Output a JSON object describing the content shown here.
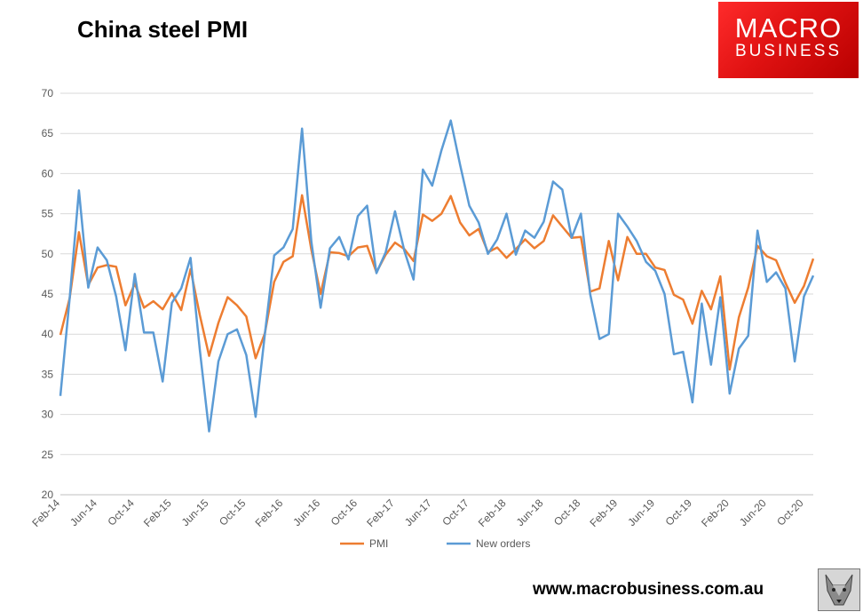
{
  "header": {
    "title": "China steel PMI"
  },
  "logo": {
    "line1": "MACRO",
    "line2": "BUSINESS"
  },
  "footer": {
    "url": "www.macrobusiness.com.au"
  },
  "colors": {
    "pmi": "#ED7D31",
    "new_orders": "#5B9BD5",
    "grid": "#D9D9D9",
    "axis_text": "#595959"
  },
  "chart_data": {
    "type": "line",
    "title": "China steel PMI",
    "ylim": [
      20,
      70
    ],
    "yticks": [
      20,
      25,
      30,
      35,
      40,
      45,
      50,
      55,
      60,
      65,
      70
    ],
    "grid": true,
    "legend": "bottom",
    "x": [
      "Feb-14",
      "Mar-14",
      "Apr-14",
      "May-14",
      "Jun-14",
      "Jul-14",
      "Aug-14",
      "Sep-14",
      "Oct-14",
      "Nov-14",
      "Dec-14",
      "Jan-15",
      "Feb-15",
      "Mar-15",
      "Apr-15",
      "May-15",
      "Jun-15",
      "Jul-15",
      "Aug-15",
      "Sep-15",
      "Oct-15",
      "Nov-15",
      "Dec-15",
      "Jan-16",
      "Feb-16",
      "Mar-16",
      "Apr-16",
      "May-16",
      "Jun-16",
      "Jul-16",
      "Aug-16",
      "Sep-16",
      "Oct-16",
      "Nov-16",
      "Dec-16",
      "Jan-17",
      "Feb-17",
      "Mar-17",
      "Apr-17",
      "May-17",
      "Jun-17",
      "Jul-17",
      "Aug-17",
      "Sep-17",
      "Oct-17",
      "Nov-17",
      "Dec-17",
      "Jan-18",
      "Feb-18",
      "Mar-18",
      "Apr-18",
      "May-18",
      "Jun-18",
      "Jul-18",
      "Aug-18",
      "Sep-18",
      "Oct-18",
      "Nov-18",
      "Dec-18",
      "Jan-19",
      "Feb-19",
      "Mar-19",
      "Apr-19",
      "May-19",
      "Jun-19",
      "Jul-19",
      "Aug-19",
      "Sep-19",
      "Oct-19",
      "Nov-19",
      "Dec-19",
      "Jan-20",
      "Feb-20",
      "Mar-20",
      "Apr-20",
      "May-20",
      "Jun-20",
      "Jul-20",
      "Aug-20",
      "Sep-20",
      "Oct-20",
      "Nov-20"
    ],
    "tick_labels": [
      "Feb-14",
      "Jun-14",
      "Oct-14",
      "Feb-15",
      "Jun-15",
      "Oct-15",
      "Feb-16",
      "Jun-16",
      "Oct-16",
      "Feb-17",
      "Jun-17",
      "Oct-17",
      "Feb-18",
      "Jun-18",
      "Oct-18",
      "Feb-19",
      "Jun-19",
      "Oct-19",
      "Feb-20",
      "Jun-20",
      "Oct-20"
    ],
    "series": [
      {
        "name": "PMI",
        "values": [
          39.9,
          44.5,
          52.7,
          46.1,
          48.3,
          48.6,
          48.4,
          43.6,
          46.3,
          43.3,
          44.1,
          43.1,
          45.1,
          43.0,
          48.1,
          42.4,
          37.3,
          41.4,
          44.6,
          43.6,
          42.2,
          37.0,
          40.1,
          46.5,
          49.0,
          49.7,
          57.3,
          50.5,
          45.0,
          50.2,
          50.1,
          49.7,
          50.8,
          51.0,
          47.7,
          49.9,
          51.4,
          50.6,
          49.1,
          54.9,
          54.1,
          55.0,
          57.2,
          53.9,
          52.3,
          53.1,
          50.2,
          50.8,
          49.5,
          50.6,
          51.8,
          50.7,
          51.6,
          54.8,
          53.4,
          52.0,
          52.1,
          45.3,
          45.7,
          51.6,
          46.7,
          52.1,
          50.0,
          50.0,
          48.3,
          48.0,
          44.9,
          44.3,
          41.3,
          45.4,
          43.1,
          47.2,
          35.6,
          42.1,
          45.8,
          51.0,
          49.7,
          49.2,
          46.4,
          43.9,
          46.0,
          49.4
        ]
      },
      {
        "name": "New orders",
        "values": [
          32.3,
          44.5,
          57.9,
          45.8,
          50.8,
          49.2,
          44.7,
          38.0,
          47.5,
          40.2,
          40.2,
          34.1,
          43.9,
          45.7,
          49.5,
          38.1,
          27.9,
          36.6,
          40.0,
          40.6,
          37.4,
          29.7,
          40.0,
          49.8,
          50.8,
          53.1,
          65.6,
          51.5,
          43.3,
          50.7,
          52.1,
          49.3,
          54.7,
          56.0,
          47.6,
          50.2,
          55.3,
          50.4,
          46.8,
          60.5,
          58.5,
          62.9,
          66.6,
          61.1,
          56.0,
          53.9,
          50.0,
          51.8,
          55.0,
          49.9,
          52.9,
          52.0,
          54.0,
          59.0,
          58.0,
          52.0,
          55.0,
          45.0,
          39.4,
          40.0,
          55.0,
          53.4,
          51.6,
          49.0,
          47.9,
          45.0,
          37.5,
          37.8,
          31.5,
          43.8,
          36.2,
          44.6,
          32.6,
          38.2,
          39.8,
          52.9,
          46.5,
          47.7,
          45.7,
          36.6,
          44.7,
          47.3
        ]
      }
    ]
  }
}
